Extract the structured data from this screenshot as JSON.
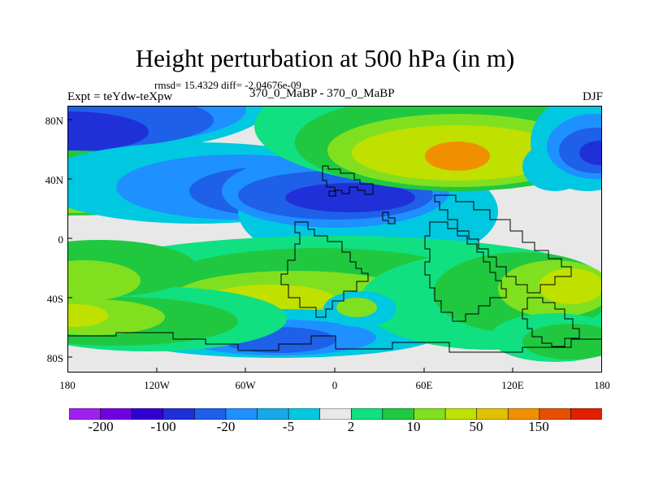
{
  "title": "Height perturbation at 500 hPa (in m)",
  "stats": "rmsd= 15.4329 diff= -2.04676e-09",
  "experiment": "Expt = teYdw-teXpw",
  "run": "370_0_MaBP - 370_0_MaBP",
  "season": "DJF",
  "lat_ticks": [
    "80N",
    "40N",
    "0",
    "40S",
    "80S"
  ],
  "lon_ticks": [
    "180",
    "120W",
    "60W",
    "0",
    "60E",
    "120E",
    "180"
  ],
  "colorbar": {
    "labels": [
      "-200",
      "-100",
      "-20",
      "-5",
      "2",
      "10",
      "50",
      "150"
    ],
    "colors": [
      "#a020f0",
      "#7000e0",
      "#3000d0",
      "#2030d8",
      "#1e60e8",
      "#1e90ff",
      "#18a8e8",
      "#00c8e0",
      "#e8e8e8",
      "#10e080",
      "#20c840",
      "#80e020",
      "#c0e000",
      "#e0c000",
      "#f09000",
      "#e85000",
      "#e02000"
    ]
  },
  "colors": {
    "neutral": "#e8e8e8",
    "deep_neg": "#2030d8",
    "mid_neg": "#1e60e8",
    "light_neg": "#1e90ff",
    "pale_neg": "#00c8e0",
    "pale_pos": "#10e080",
    "light_pos": "#20c840",
    "mid_pos": "#80e020",
    "high_pos": "#c0e000",
    "peak_pos": "#e0c000",
    "extreme_pos": "#f09000"
  }
}
